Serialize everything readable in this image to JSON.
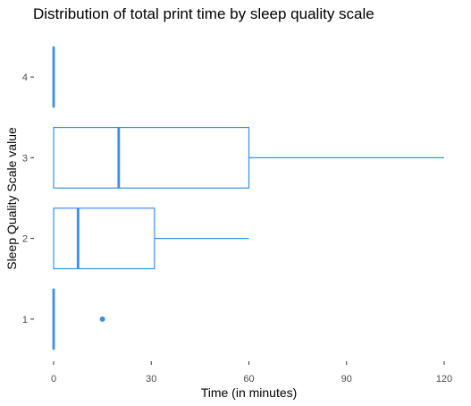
{
  "chart_data": {
    "type": "boxplot",
    "orientation": "horizontal",
    "title": "Distribution of total print time by sleep quality scale",
    "xlabel": "Time (in minutes)",
    "ylabel": "Sleep Quality Scale value",
    "xlim": [
      0,
      120
    ],
    "x_ticks": [
      0,
      30,
      60,
      90,
      120
    ],
    "categories": [
      "1",
      "2",
      "3",
      "4"
    ],
    "box_color": "#3a8fe8",
    "grid": false,
    "boxes": [
      {
        "category": "1",
        "min": 0,
        "q1": 0,
        "median": 0,
        "q3": 0,
        "max": 0,
        "outliers": [
          15
        ]
      },
      {
        "category": "2",
        "min": 0,
        "q1": 0,
        "median": 7.5,
        "q3": 31,
        "max": 60,
        "outliers": []
      },
      {
        "category": "3",
        "min": 0,
        "q1": 0,
        "median": 20,
        "q3": 60,
        "max": 120,
        "outliers": []
      },
      {
        "category": "4",
        "min": 0,
        "q1": 0,
        "median": 0,
        "q3": 0,
        "max": 0,
        "outliers": []
      }
    ]
  }
}
